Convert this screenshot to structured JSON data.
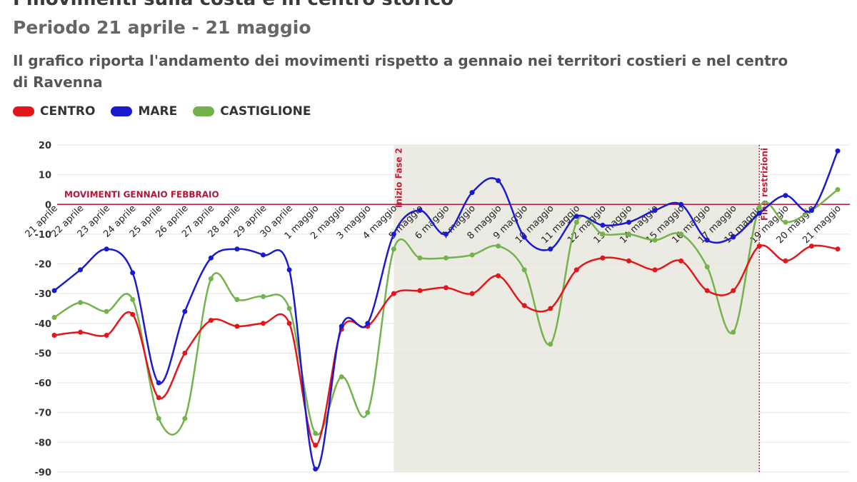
{
  "chart_data": {
    "type": "line",
    "title": "I movimenti sulla costa e in centro storico",
    "subtitle": "Periodo 21 aprile - 21 maggio",
    "description": "Il grafico riporta l'andamento dei movimenti rispetto a gennaio nei territori costieri e nel centro di Ravenna",
    "categories": [
      "21 aprile",
      "22 aprile",
      "23 aprile",
      "24 aprile",
      "25 aprile",
      "26 aprile",
      "27 aprile",
      "28 aprile",
      "29 aprile",
      "30 aprile",
      "1 maggio",
      "2 maggio",
      "3 maggio",
      "4 maggio",
      "5 maggio",
      "6 maggio",
      "7 maggio",
      "8 maggio",
      "9 maggio",
      "10 maggio",
      "11 maggio",
      "12 maggio",
      "13 maggio",
      "14 maggio",
      "15 maggio",
      "16 maggio",
      "17 maggio",
      "18 maggio",
      "19 maggio",
      "20 maggio",
      "21 maggio"
    ],
    "series": [
      {
        "name": "CENTRO",
        "color": "#e3161b",
        "values": [
          -44,
          -43,
          -44,
          -37,
          -65,
          -50,
          -39,
          -41,
          -40,
          -40,
          -81,
          -42,
          -41,
          -30,
          -29,
          -28,
          -30,
          -24,
          -34,
          -35,
          -22,
          -18,
          -19,
          -22,
          -19,
          -29,
          -29,
          -14,
          -19,
          -14,
          -15
        ]
      },
      {
        "name": "MARE",
        "color": "#1a1ad1",
        "values": [
          -29,
          -22,
          -15,
          -23,
          -60,
          -36,
          -18,
          -15,
          -17,
          -22,
          -89,
          -41,
          -40,
          -10,
          -2,
          -10,
          4,
          8,
          -11,
          -15,
          -4,
          -7,
          -6,
          -2,
          0,
          -12,
          -11,
          -3,
          3,
          -2,
          18
        ]
      },
      {
        "name": "CASTIGLIONE",
        "color": "#74b24b",
        "values": [
          -38,
          -33,
          -36,
          -32,
          -72,
          -72,
          -25,
          -32,
          -31,
          -35,
          -77,
          -58,
          -70,
          -15,
          -18,
          -18,
          -17,
          -14,
          -22,
          -47,
          -6,
          -10,
          -10,
          -12,
          -10,
          -21,
          -43,
          -1,
          -6,
          -2,
          5
        ]
      }
    ],
    "ylim": [
      -90,
      20
    ],
    "yticks": [
      20,
      10,
      0,
      -10,
      -20,
      -30,
      -40,
      -50,
      -60,
      -70,
      -80,
      -90
    ],
    "grid": true,
    "reference_line": {
      "value": 0,
      "label": "MOVIMENTI GENNAIO FEBBRAIO",
      "color": "#b0163a"
    },
    "shaded_range": {
      "from": "4 maggio",
      "to": "18 maggio",
      "color": "#ecebe3"
    },
    "annotations": [
      {
        "x": "4 maggio",
        "label": "Inizio Fase 2"
      },
      {
        "x": "18 maggio",
        "label": "Fine restrizioni"
      }
    ]
  }
}
